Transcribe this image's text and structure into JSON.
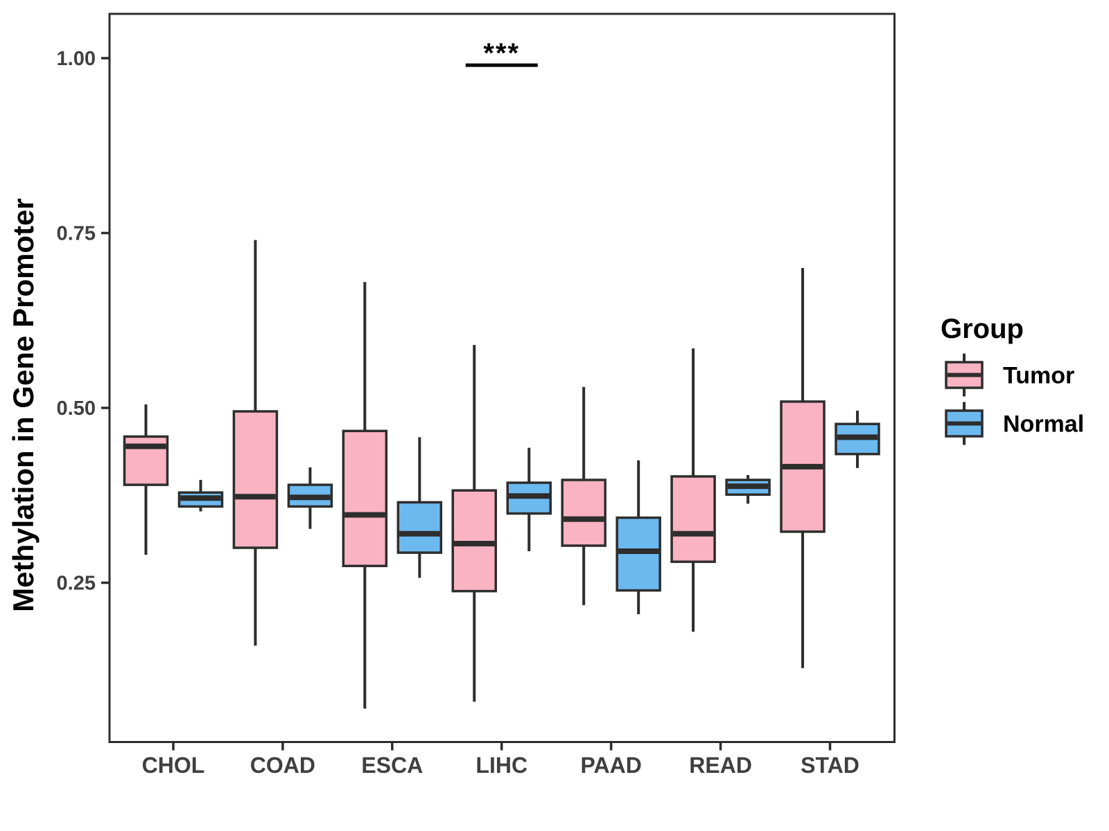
{
  "chart_data": {
    "type": "boxplot",
    "title": "",
    "xlabel": "",
    "ylabel": "Methylation in Gene Promoter",
    "categories": [
      "CHOL",
      "COAD",
      "ESCA",
      "LIHC",
      "PAAD",
      "READ",
      "STAD"
    ],
    "y_tick_labels": [
      "0.25",
      "0.50",
      "0.75",
      "1.00"
    ],
    "y_tick_values": [
      0.25,
      0.5,
      0.75,
      1.0
    ],
    "ylim": [
      0.02,
      1.06
    ],
    "grid": false,
    "legend": {
      "title": "Group",
      "position": "right",
      "entries": [
        {
          "label": "Tumor",
          "color": "#FAB3C2"
        },
        {
          "label": "Normal",
          "color": "#6CB9F0"
        }
      ]
    },
    "series": [
      {
        "name": "Tumor",
        "color": "#FAB3C2",
        "boxes": [
          {
            "category": "CHOL",
            "whisker_low": 0.29,
            "q1": 0.39,
            "median": 0.445,
            "q3": 0.459,
            "whisker_high": 0.505
          },
          {
            "category": "COAD",
            "whisker_low": 0.16,
            "q1": 0.3,
            "median": 0.373,
            "q3": 0.495,
            "whisker_high": 0.74
          },
          {
            "category": "ESCA",
            "whisker_low": 0.07,
            "q1": 0.274,
            "median": 0.347,
            "q3": 0.467,
            "whisker_high": 0.68
          },
          {
            "category": "LIHC",
            "whisker_low": 0.08,
            "q1": 0.238,
            "median": 0.306,
            "q3": 0.382,
            "whisker_high": 0.59
          },
          {
            "category": "PAAD",
            "whisker_low": 0.218,
            "q1": 0.303,
            "median": 0.341,
            "q3": 0.397,
            "whisker_high": 0.53
          },
          {
            "category": "READ",
            "whisker_low": 0.18,
            "q1": 0.28,
            "median": 0.32,
            "q3": 0.402,
            "whisker_high": 0.585
          },
          {
            "category": "STAD",
            "whisker_low": 0.128,
            "q1": 0.323,
            "median": 0.416,
            "q3": 0.509,
            "whisker_high": 0.7
          }
        ]
      },
      {
        "name": "Normal",
        "color": "#6CB9F0",
        "boxes": [
          {
            "category": "CHOL",
            "whisker_low": 0.352,
            "q1": 0.359,
            "median": 0.371,
            "q3": 0.379,
            "whisker_high": 0.397
          },
          {
            "category": "COAD",
            "whisker_low": 0.327,
            "q1": 0.359,
            "median": 0.372,
            "q3": 0.39,
            "whisker_high": 0.415
          },
          {
            "category": "ESCA",
            "whisker_low": 0.257,
            "q1": 0.293,
            "median": 0.32,
            "q3": 0.365,
            "whisker_high": 0.458
          },
          {
            "category": "LIHC",
            "whisker_low": 0.295,
            "q1": 0.349,
            "median": 0.374,
            "q3": 0.393,
            "whisker_high": 0.443
          },
          {
            "category": "PAAD",
            "whisker_low": 0.205,
            "q1": 0.239,
            "median": 0.295,
            "q3": 0.343,
            "whisker_high": 0.425
          },
          {
            "category": "READ",
            "whisker_low": 0.363,
            "q1": 0.376,
            "median": 0.388,
            "q3": 0.397,
            "whisker_high": 0.404
          },
          {
            "category": "STAD",
            "whisker_low": 0.414,
            "q1": 0.434,
            "median": 0.458,
            "q3": 0.477,
            "whisker_high": 0.496
          }
        ]
      }
    ],
    "annotation": {
      "type": "significance-bracket",
      "text": "***",
      "category": "LIHC",
      "bar_y": 0.99
    },
    "colors": {
      "stroke": "#2D2D2D",
      "axis_text": "#3F3F3F",
      "title_text": "#000000",
      "background": "#FFFFFF"
    }
  }
}
